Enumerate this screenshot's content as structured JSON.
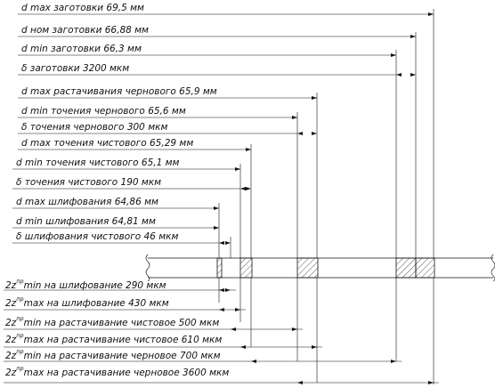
{
  "top_labels": [
    {
      "text": "d max заготовки 69,5 мм"
    },
    {
      "text": "d ном заготовки 66,88 мм"
    },
    {
      "text": "d min заготовки 66,3 мм"
    },
    {
      "text": "δ заготовки 3200 мкм"
    },
    {
      "text": "d max растачивания чернового 65,9 мм"
    },
    {
      "text": "d min точения чернового 65,6 мм"
    },
    {
      "text": "δ точения чернового 300 мкм"
    },
    {
      "text": "d max точения чистового 65,29 мм"
    },
    {
      "text": "d min точения чистового 65,1 мм"
    },
    {
      "text": "δ точения чистового 190 мкм"
    },
    {
      "text": "d max шлифования 64,86 мм"
    },
    {
      "text": "d min шлифования 64,81 мм"
    },
    {
      "text": "δ шлифования чистового 46 мкм"
    }
  ],
  "bottom_labels": [
    {
      "prefix": "2z",
      "sup": "пр",
      "text": "min на шлифование 290 мкм"
    },
    {
      "prefix": "2z",
      "sup": "пр",
      "text": "max на шлифование 430 мкм"
    },
    {
      "prefix": "2z",
      "sup": "пр",
      "text": "min на растачивание чистовое 500 мкм"
    },
    {
      "prefix": "2z",
      "sup": "пр",
      "text": "max на растачивание чистовое 610 мкм"
    },
    {
      "prefix": "2z",
      "sup": "пр",
      "text": "min  на растачивание черновое 700 мкм"
    },
    {
      "prefix": "2z",
      "sup": "пр",
      "text": "max на растачивание черновое 3600 мкм"
    }
  ]
}
